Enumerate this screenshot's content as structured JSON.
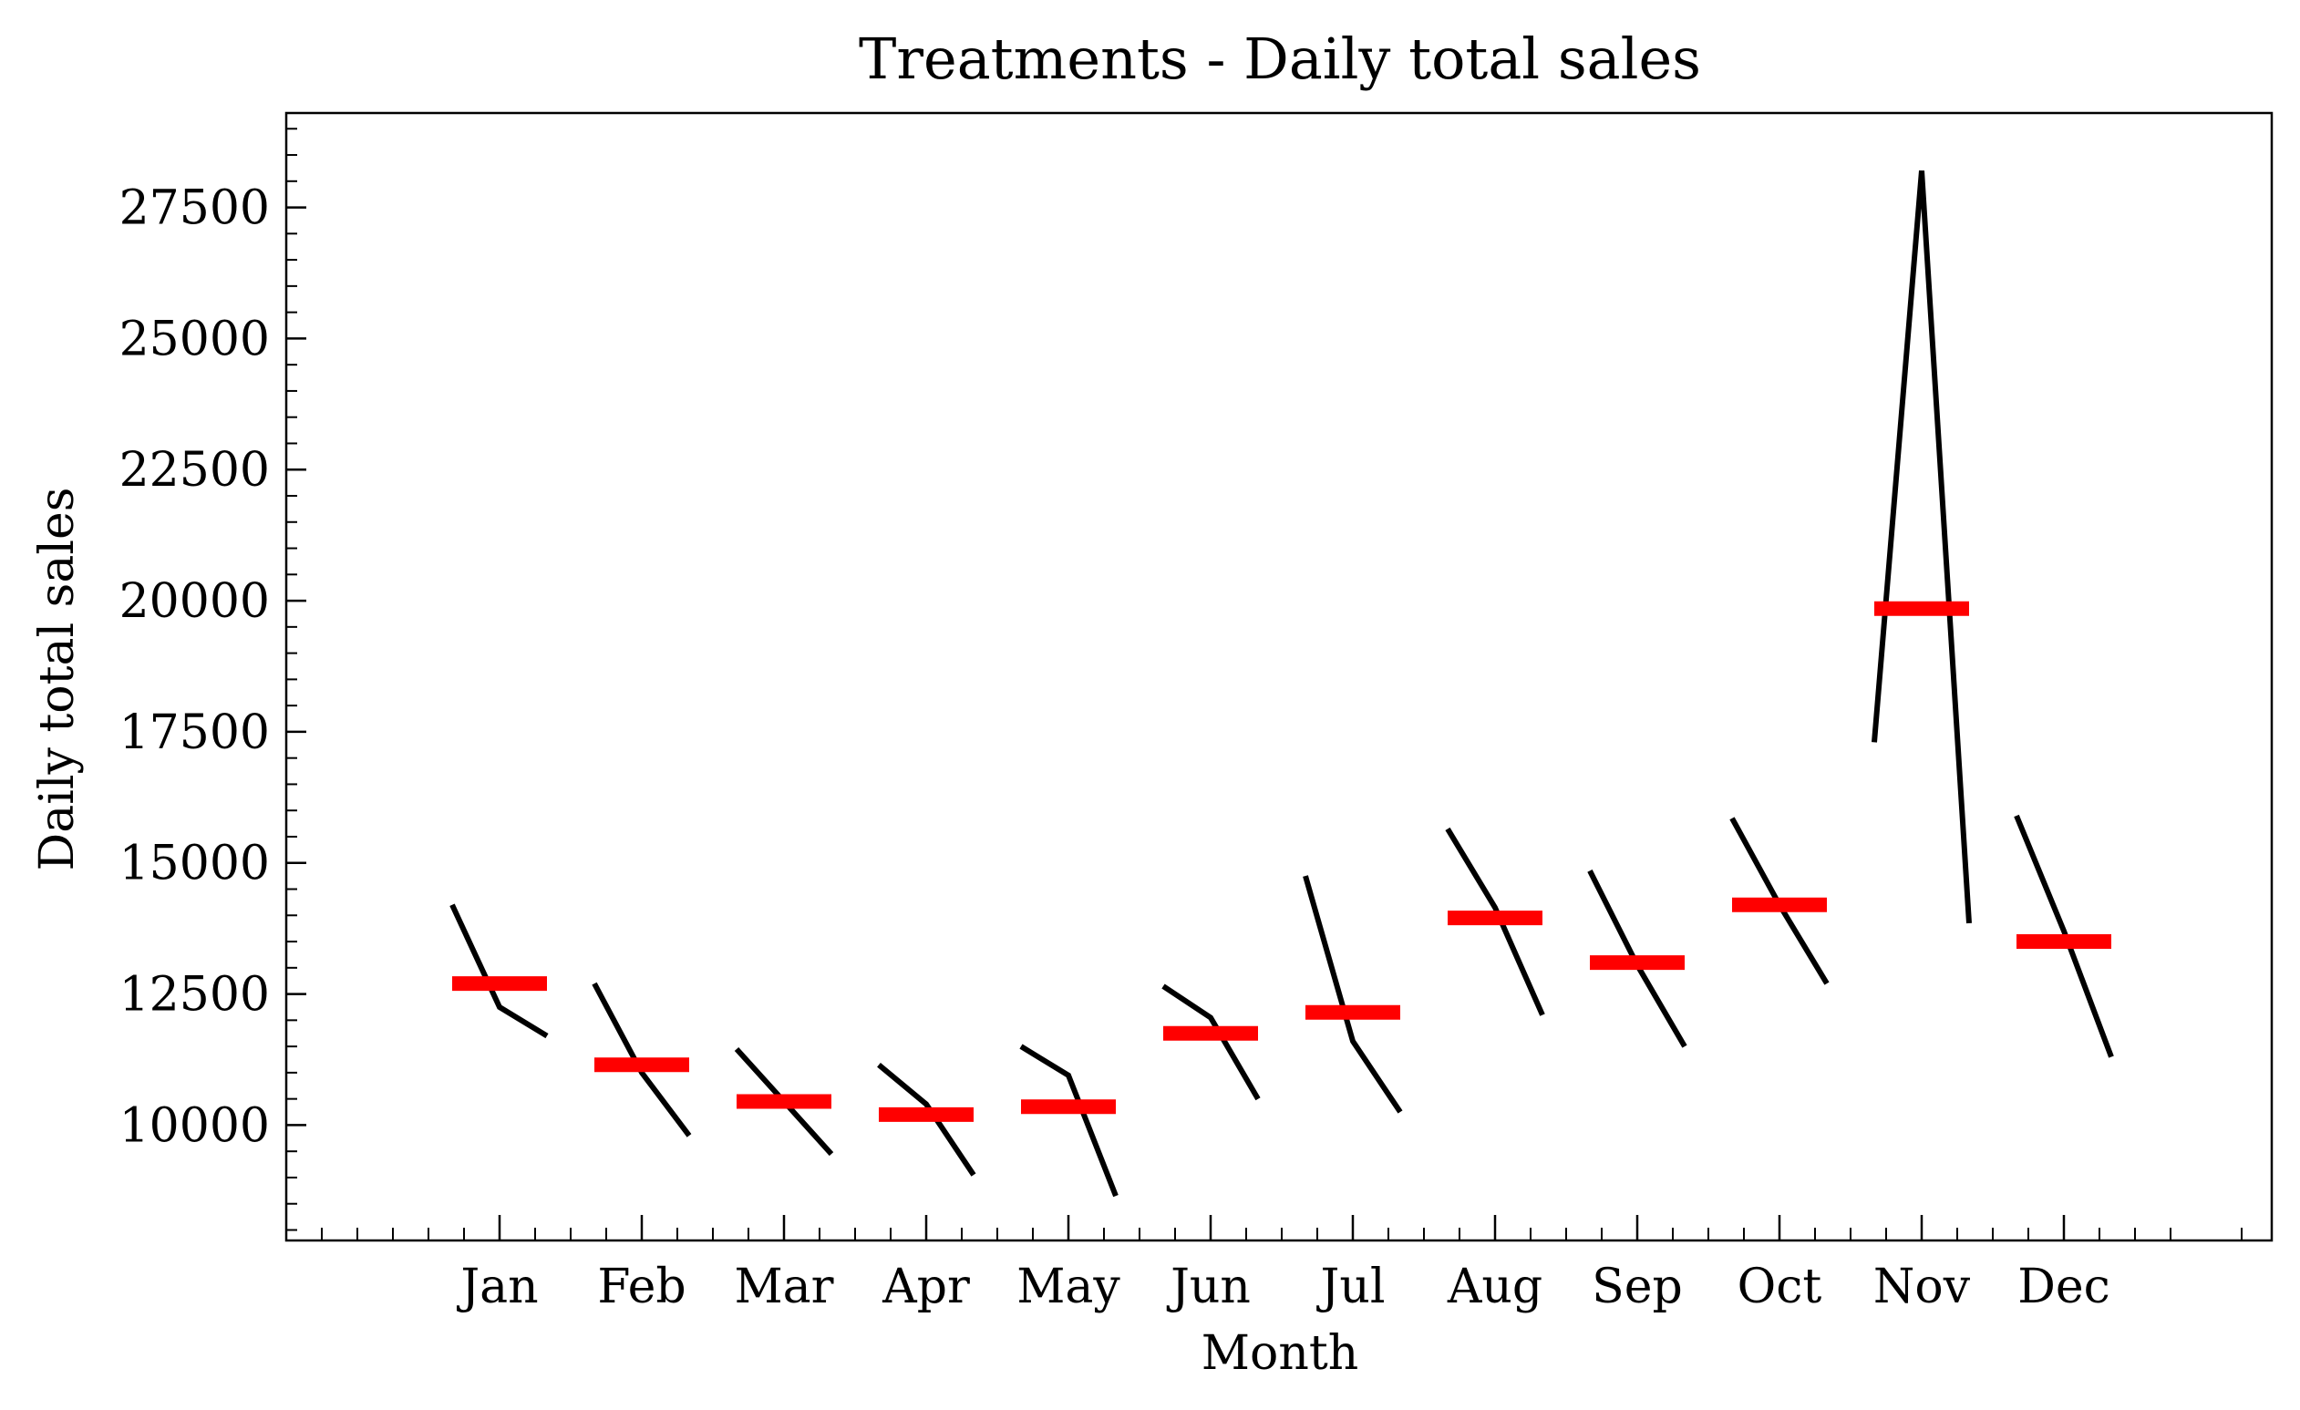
{
  "chart_data": {
    "type": "line",
    "title": "Treatments - Daily total sales",
    "xlabel": "Month",
    "ylabel": "Daily total sales",
    "categories": [
      "Jan",
      "Feb",
      "Mar",
      "Apr",
      "May",
      "Jun",
      "Jul",
      "Aug",
      "Sep",
      "Oct",
      "Nov",
      "Dec"
    ],
    "yticks": [
      10000,
      12500,
      15000,
      17500,
      20000,
      22500,
      25000,
      27500
    ],
    "ylim": [
      7800,
      29300
    ],
    "grid": false,
    "series": [
      {
        "values": [
          [
            14200,
            12250,
            11700
          ],
          [
            12700,
            11000,
            9800
          ],
          [
            11450,
            10450,
            9450
          ],
          [
            11150,
            10400,
            9050
          ],
          [
            11500,
            10950,
            8650
          ],
          [
            12650,
            12050,
            10500
          ],
          [
            14750,
            11600,
            10250
          ],
          [
            15650,
            14150,
            12100
          ],
          [
            14850,
            13050,
            11500
          ],
          [
            15850,
            14200,
            12700
          ],
          [
            17300,
            28200,
            13850
          ],
          [
            15900,
            13700,
            11300
          ]
        ]
      },
      {
        "values": [
          12700,
          11150,
          10450,
          10200,
          10350,
          11750,
          12150,
          13950,
          13100,
          14200,
          19850,
          13500
        ]
      }
    ],
    "colors": {
      "series_line": "#000000",
      "mean_marker": "#ff0000"
    }
  }
}
